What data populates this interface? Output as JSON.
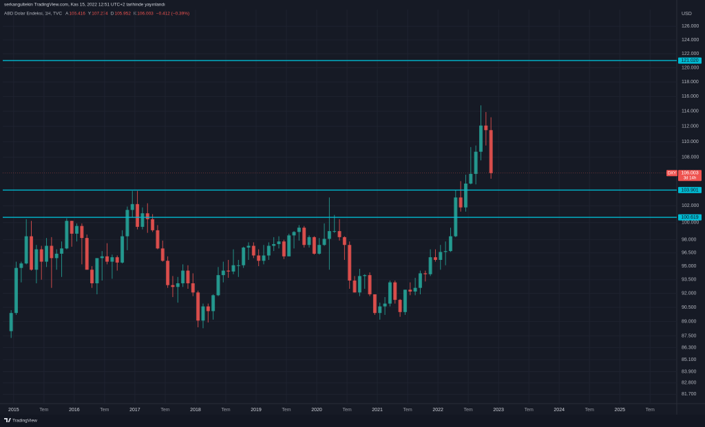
{
  "header": {
    "published": "serkangultekin TradingView.com, Kas 15, 2022 12:51 UTC+2 tarihinde yayınlandı"
  },
  "footer": {
    "brand": "TradingView"
  },
  "chart_data": {
    "type": "candlestick",
    "title": "ABD Dolar Endeksi, 1H, TVC",
    "ohlc_legend": [
      {
        "key": "A",
        "value": 106.416
      },
      {
        "key": "Y",
        "value": 107.274
      },
      {
        "key": "D",
        "value": 105.952
      },
      {
        "key": "K",
        "value": 106.003
      }
    ],
    "change_label": "−0.412 (−0.39%)",
    "currency": "USD",
    "up_color": "#26a69a",
    "down_color": "#ef5350",
    "line_color": "#00bcd4",
    "log_scale": true,
    "grid": true,
    "ylim": [
      80.8,
      128.5
    ],
    "yticks": [
      {
        "value": 126,
        "label": "126.000"
      },
      {
        "value": 124,
        "label": "124.000"
      },
      {
        "value": 122,
        "label": "122.000"
      },
      {
        "value": 120,
        "label": "120.000"
      },
      {
        "value": 118,
        "label": "118.000"
      },
      {
        "value": 116,
        "label": "116.000"
      },
      {
        "value": 114,
        "label": "114.000"
      },
      {
        "value": 112,
        "label": "112.000"
      },
      {
        "value": 110,
        "label": "110.000"
      },
      {
        "value": 108,
        "label": "108.000"
      },
      {
        "value": 102,
        "label": "102.000"
      },
      {
        "value": 100,
        "label": "100.000"
      },
      {
        "value": 98,
        "label": "98.000"
      },
      {
        "value": 96.5,
        "label": "96.500"
      },
      {
        "value": 95,
        "label": "95.000"
      },
      {
        "value": 93.5,
        "label": "93.500"
      },
      {
        "value": 92,
        "label": "92.000"
      },
      {
        "value": 90.5,
        "label": "90.500"
      },
      {
        "value": 89,
        "label": "89.000"
      },
      {
        "value": 87.5,
        "label": "87.500"
      },
      {
        "value": 86.3,
        "label": "86.300"
      },
      {
        "value": 85.1,
        "label": "85.100"
      },
      {
        "value": 83.9,
        "label": "83.900"
      },
      {
        "value": 82.8,
        "label": "82.800"
      },
      {
        "value": 81.7,
        "label": "81.700"
      }
    ],
    "xlim": [
      2014.82,
      2025.94
    ],
    "xticks": [
      2015,
      {
        "value": 2015.5,
        "label": "Tem"
      },
      2016,
      {
        "value": 2016.5,
        "label": "Tem"
      },
      2017,
      {
        "value": 2017.5,
        "label": "Tem"
      },
      2018,
      {
        "value": 2018.5,
        "label": "Tem"
      },
      2019,
      {
        "value": 2019.5,
        "label": "Tem"
      },
      2020,
      {
        "value": 2020.5,
        "label": "Tem"
      },
      2021,
      {
        "value": 2021.5,
        "label": "Tem"
      },
      2022,
      {
        "value": 2022.5,
        "label": "Tem"
      },
      2023,
      {
        "value": 2023.5,
        "label": "Tem"
      },
      2024,
      {
        "value": 2024.5,
        "label": "Tem"
      },
      2025,
      {
        "value": 2025.5,
        "label": "Tem"
      }
    ],
    "hlines": [
      {
        "value": 121.02,
        "label": "121.020"
      },
      103.901,
      100.619
    ],
    "last_price": {
      "symbol": "DXY",
      "value": 106.003,
      "countdown": "3d 14h"
    },
    "x": [
      "2014-12",
      "2015-01",
      "2015-02",
      "2015-03",
      "2015-04",
      "2015-05",
      "2015-06",
      "2015-07",
      "2015-08",
      "2015-09",
      "2015-10",
      "2015-11",
      "2015-12",
      "2016-01",
      "2016-02",
      "2016-03",
      "2016-04",
      "2016-05",
      "2016-06",
      "2016-07",
      "2016-08",
      "2016-09",
      "2016-10",
      "2016-11",
      "2016-12",
      "2017-01",
      "2017-02",
      "2017-03",
      "2017-04",
      "2017-05",
      "2017-06",
      "2017-07",
      "2017-08",
      "2017-09",
      "2017-10",
      "2017-11",
      "2017-12",
      "2018-01",
      "2018-02",
      "2018-03",
      "2018-04",
      "2018-05",
      "2018-06",
      "2018-07",
      "2018-08",
      "2018-09",
      "2018-10",
      "2018-11",
      "2018-12",
      "2019-01",
      "2019-02",
      "2019-03",
      "2019-04",
      "2019-05",
      "2019-06",
      "2019-07",
      "2019-08",
      "2019-09",
      "2019-10",
      "2019-11",
      "2019-12",
      "2020-01",
      "2020-02",
      "2020-03",
      "2020-04",
      "2020-05",
      "2020-06",
      "2020-07",
      "2020-08",
      "2020-09",
      "2020-10",
      "2020-11",
      "2020-12",
      "2021-01",
      "2021-02",
      "2021-03",
      "2021-04",
      "2021-05",
      "2021-06",
      "2021-07",
      "2021-08",
      "2021-09",
      "2021-10",
      "2021-11",
      "2021-12",
      "2022-01",
      "2022-02",
      "2022-03",
      "2022-04",
      "2022-05",
      "2022-06",
      "2022-07",
      "2022-08",
      "2022-09",
      "2022-10",
      "2022-11"
    ],
    "ohlc": [
      [
        88.0,
        90.2,
        87.3,
        89.9
      ],
      [
        89.9,
        95.5,
        89.7,
        94.8
      ],
      [
        94.8,
        95.5,
        93.2,
        95.3
      ],
      [
        95.3,
        100.4,
        95.2,
        98.4
      ],
      [
        98.4,
        100.2,
        94.5,
        94.6
      ],
      [
        94.6,
        97.4,
        93.1,
        96.9
      ],
      [
        96.9,
        97.3,
        93.5,
        95.5
      ],
      [
        95.5,
        98.2,
        94.9,
        97.3
      ],
      [
        97.3,
        98.3,
        92.6,
        95.9
      ],
      [
        95.9,
        96.9,
        94.6,
        96.4
      ],
      [
        96.4,
        97.8,
        93.8,
        97.0
      ],
      [
        97.0,
        100.5,
        96.9,
        100.2
      ],
      [
        100.2,
        100.2,
        97.2,
        98.7
      ],
      [
        98.7,
        99.9,
        97.8,
        99.6
      ],
      [
        99.6,
        99.9,
        95.2,
        98.2
      ],
      [
        98.2,
        98.6,
        94.6,
        94.6
      ],
      [
        94.6,
        95.0,
        92.6,
        93.1
      ],
      [
        93.1,
        95.9,
        91.9,
        95.9
      ],
      [
        95.9,
        96.7,
        93.4,
        96.1
      ],
      [
        96.1,
        97.6,
        95.2,
        95.5
      ],
      [
        95.5,
        96.3,
        93.6,
        96.0
      ],
      [
        96.0,
        96.2,
        94.5,
        95.4
      ],
      [
        95.4,
        99.1,
        95.3,
        98.4
      ],
      [
        98.4,
        101.9,
        96.8,
        101.5
      ],
      [
        101.5,
        103.8,
        100.6,
        102.2
      ],
      [
        102.2,
        103.8,
        99.2,
        99.5
      ],
      [
        99.5,
        101.8,
        99.2,
        101.1
      ],
      [
        101.1,
        102.3,
        98.8,
        100.4
      ],
      [
        100.4,
        101.0,
        98.9,
        99.1
      ],
      [
        99.1,
        99.7,
        96.9,
        97.0
      ],
      [
        97.0,
        97.9,
        95.5,
        95.6
      ],
      [
        95.6,
        96.1,
        92.6,
        92.9
      ],
      [
        92.9,
        93.9,
        91.6,
        92.7
      ],
      [
        92.7,
        93.8,
        91.0,
        93.1
      ],
      [
        93.1,
        95.2,
        92.7,
        94.5
      ],
      [
        94.5,
        95.1,
        92.5,
        93.1
      ],
      [
        93.1,
        94.2,
        91.7,
        92.1
      ],
      [
        92.1,
        92.3,
        88.4,
        89.1
      ],
      [
        89.1,
        90.9,
        88.3,
        90.6
      ],
      [
        90.6,
        90.9,
        88.9,
        90.1
      ],
      [
        90.1,
        91.9,
        89.2,
        91.8
      ],
      [
        91.8,
        94.9,
        91.7,
        94.0
      ],
      [
        94.0,
        95.5,
        93.2,
        94.5
      ],
      [
        94.5,
        95.7,
        93.7,
        94.4
      ],
      [
        94.4,
        96.9,
        94.1,
        95.1
      ],
      [
        95.1,
        95.7,
        93.8,
        95.1
      ],
      [
        95.1,
        97.2,
        94.8,
        97.1
      ],
      [
        97.1,
        97.7,
        95.7,
        97.3
      ],
      [
        97.3,
        97.7,
        95.9,
        96.2
      ],
      [
        96.2,
        96.9,
        95.0,
        95.6
      ],
      [
        95.6,
        97.4,
        95.2,
        96.2
      ],
      [
        96.2,
        97.7,
        95.7,
        97.3
      ],
      [
        97.3,
        98.3,
        96.7,
        97.5
      ],
      [
        97.5,
        98.4,
        97.0,
        97.8
      ],
      [
        97.8,
        98.0,
        95.8,
        96.1
      ],
      [
        96.1,
        98.7,
        96.1,
        98.5
      ],
      [
        98.5,
        99.0,
        97.0,
        98.9
      ],
      [
        98.9,
        99.7,
        97.9,
        99.4
      ],
      [
        99.4,
        99.6,
        97.1,
        97.4
      ],
      [
        97.4,
        98.5,
        97.1,
        98.3
      ],
      [
        98.3,
        98.4,
        96.3,
        96.4
      ],
      [
        96.4,
        98.2,
        96.3,
        97.4
      ],
      [
        97.4,
        99.9,
        97.3,
        98.1
      ],
      [
        98.1,
        103.0,
        94.6,
        99.0
      ],
      [
        99.0,
        100.9,
        98.8,
        99.0
      ],
      [
        99.0,
        100.4,
        97.9,
        98.3
      ],
      [
        98.3,
        98.4,
        95.7,
        97.4
      ],
      [
        97.4,
        97.8,
        92.5,
        93.4
      ],
      [
        93.4,
        93.9,
        92.1,
        92.1
      ],
      [
        92.1,
        94.7,
        91.7,
        93.9
      ],
      [
        93.9,
        94.1,
        92.5,
        94.0
      ],
      [
        94.0,
        94.3,
        91.7,
        91.9
      ],
      [
        91.9,
        91.9,
        89.7,
        89.9
      ],
      [
        89.9,
        91.0,
        89.2,
        90.6
      ],
      [
        90.6,
        91.6,
        89.7,
        90.9
      ],
      [
        90.9,
        93.4,
        90.6,
        93.2
      ],
      [
        93.2,
        93.4,
        90.9,
        91.3
      ],
      [
        91.3,
        91.4,
        89.5,
        90.0
      ],
      [
        90.0,
        92.4,
        89.7,
        92.4
      ],
      [
        92.4,
        93.2,
        91.8,
        92.2
      ],
      [
        92.2,
        93.7,
        91.8,
        92.6
      ],
      [
        92.6,
        94.5,
        91.9,
        94.2
      ],
      [
        94.2,
        94.5,
        93.3,
        94.1
      ],
      [
        94.1,
        96.9,
        93.9,
        96.0
      ],
      [
        96.0,
        96.9,
        95.5,
        95.7
      ],
      [
        95.7,
        97.4,
        94.6,
        96.6
      ],
      [
        96.6,
        97.8,
        95.1,
        96.7
      ],
      [
        96.7,
        99.4,
        96.6,
        98.4
      ],
      [
        98.4,
        103.9,
        98.3,
        103.0
      ],
      [
        103.0,
        105.0,
        101.3,
        101.8
      ],
      [
        101.8,
        105.8,
        101.3,
        104.7
      ],
      [
        104.7,
        109.3,
        104.6,
        105.9
      ],
      [
        105.9,
        109.5,
        104.6,
        108.7
      ],
      [
        108.7,
        114.8,
        107.6,
        112.1
      ],
      [
        112.1,
        113.9,
        109.5,
        111.5
      ],
      [
        111.5,
        113.2,
        105.3,
        106.0
      ]
    ]
  }
}
